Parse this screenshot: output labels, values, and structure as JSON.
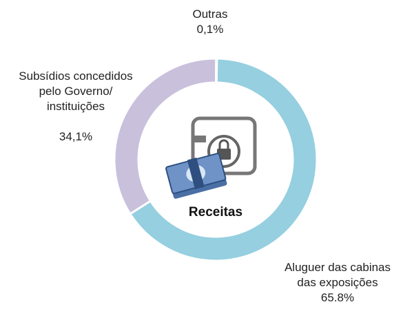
{
  "chart_data": {
    "type": "pie",
    "title": "Receitas",
    "categories": [
      "Aluguer das cabinas\ndas exposições",
      "Subsídios concedidos\npelo Governo/\ninstituições",
      "Outras"
    ],
    "values": [
      65.8,
      34.1,
      0.1
    ],
    "value_labels": [
      "65.8%",
      "34,1%",
      "0,1%"
    ],
    "colors": [
      "#95cfe0",
      "#c9c0dc",
      "#c9c0dc"
    ]
  }
}
